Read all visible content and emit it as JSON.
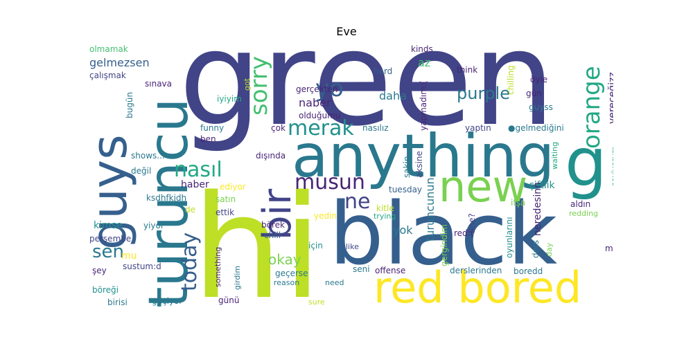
{
  "title": "Eve",
  "palette": {
    "deep_purple": "#482475",
    "indigo": "#414487",
    "slate_blue": "#355f8d",
    "steel_blue": "#2a788e",
    "teal": "#21918c",
    "sea_green": "#22a884",
    "green": "#44bf70",
    "lime": "#7ad151",
    "yellow_green": "#bddf26",
    "yellow": "#fde725"
  },
  "words": [
    {
      "id": "green",
      "text": "green",
      "color": "#414487"
    },
    {
      "id": "hi",
      "text": "hi",
      "color": "#bddf26"
    },
    {
      "id": "anything",
      "text": "anything",
      "color": "#2a788e"
    },
    {
      "id": "black",
      "text": "black",
      "color": "#355f8d"
    },
    {
      "id": "turuncu",
      "text": "turuncu",
      "color": "#2a788e"
    },
    {
      "id": "guys",
      "text": "guys",
      "color": "#355f8d"
    },
    {
      "id": "red_bored",
      "text": "red bored",
      "color": "#fde725"
    },
    {
      "id": "new",
      "text": "new",
      "color": "#7ad151"
    },
    {
      "id": "bir",
      "text": "bir",
      "color": "#414487"
    },
    {
      "id": "g",
      "text": "g",
      "color": "#21918c"
    },
    {
      "id": "orange",
      "text": "orange",
      "color": "#22a884"
    },
    {
      "id": "sorry",
      "text": "sorry",
      "color": "#44bf70"
    },
    {
      "id": "yo",
      "text": "yo",
      "color": "#355f8d"
    },
    {
      "id": "merak",
      "text": "merak",
      "color": "#21918c"
    },
    {
      "id": "nasil",
      "text": "nasıl",
      "color": "#22a884"
    },
    {
      "id": "musun",
      "text": "musun",
      "color": "#482475"
    },
    {
      "id": "ne",
      "text": "ne",
      "color": "#414487"
    },
    {
      "id": "today",
      "text": "today",
      "color": "#355f8d"
    },
    {
      "id": "sen",
      "text": "sen",
      "color": "#2a788e"
    },
    {
      "id": "purple",
      "text": "purple",
      "color": "#2a788e"
    },
    {
      "id": "okay",
      "text": "okay",
      "color": "#7ad151"
    },
    {
      "id": "daha",
      "text": "daha",
      "color": "#2a788e"
    },
    {
      "id": "naber",
      "text": "naber",
      "color": "#482475"
    },
    {
      "id": "az",
      "text": "az",
      "color": "#44bf70"
    },
    {
      "id": "gelmezsen",
      "text": "gelmezsen",
      "color": "#355f8d"
    },
    {
      "id": "calismak",
      "text": "çalışmak",
      "color": "#414487"
    },
    {
      "id": "olmamak",
      "text": "olmamak",
      "color": "#44bf70"
    },
    {
      "id": "kinds",
      "text": "kinds",
      "color": "#482475"
    },
    {
      "id": "chilling",
      "text": "chilling",
      "color": "#bddf26"
    },
    {
      "id": "verecegizz",
      "text": "vereceğizz",
      "color": "#482475"
    },
    {
      "id": "think",
      "text": "think",
      "color": "#482475"
    },
    {
      "id": "hard",
      "text": "hard",
      "color": "#355f8d"
    },
    {
      "id": "oyle",
      "text": "öyle",
      "color": "#482475"
    },
    {
      "id": "gun",
      "text": "gün",
      "color": "#482475"
    },
    {
      "id": "guyss",
      "text": "guyss",
      "color": "#2a788e"
    },
    {
      "id": "gercekten",
      "text": "gerçekten",
      "color": "#482475"
    },
    {
      "id": "yapmadim",
      "text": "yapmadım:(",
      "color": "#482475"
    },
    {
      "id": "sinava",
      "text": "sınava",
      "color": "#482475"
    },
    {
      "id": "got",
      "text": "got",
      "color": "#bddf26"
    },
    {
      "id": "bugun",
      "text": "bugün",
      "color": "#2a788e"
    },
    {
      "id": "iyiyim",
      "text": "iyiyim",
      "color": "#22a884"
    },
    {
      "id": "oldugumu",
      "text": "olduğumu",
      "color": "#482475"
    },
    {
      "id": "nasiliz",
      "text": "nasılız",
      "color": "#2a788e"
    },
    {
      "id": "cok",
      "text": "çok",
      "color": "#482475"
    },
    {
      "id": "funny",
      "text": "funny",
      "color": "#2a788e"
    },
    {
      "id": "ben",
      "text": "ben",
      "color": "#482475"
    },
    {
      "id": "yaptin",
      "text": "yaptın",
      "color": "#414487"
    },
    {
      "id": "gelmedigini",
      "text": "●gelmediğini",
      "color": "#2a788e"
    },
    {
      "id": "waiting",
      "text": "waiting",
      "color": "#22a884"
    },
    {
      "id": "seviyorum",
      "text": "seviyorum",
      "color": "#22a884"
    },
    {
      "id": "shows",
      "text": "shows...",
      "color": "#2a788e"
    },
    {
      "id": "disinda",
      "text": "dışında",
      "color": "#482475"
    },
    {
      "id": "degil",
      "text": "değil",
      "color": "#2a788e"
    },
    {
      "id": "sakin",
      "text": "sakin",
      "color": "#2a788e"
    },
    {
      "id": "aksine",
      "text": "aksine",
      "color": "#414487"
    },
    {
      "id": "haber",
      "text": "haber",
      "color": "#482475"
    },
    {
      "id": "ediyor",
      "text": "ediyor",
      "color": "#fde725"
    },
    {
      "id": "tuesday",
      "text": "tuesday",
      "color": "#355f8d"
    },
    {
      "id": "turuncunun",
      "text": "turuncunun",
      "color": "#2a788e"
    },
    {
      "id": "ciftlik",
      "text": "çiftlik",
      "color": "#21918c"
    },
    {
      "id": "ksdhfkjdh",
      "text": "ksdhfkjdh",
      "color": "#2a788e"
    },
    {
      "id": "satin",
      "text": "satın",
      "color": "#7ad151"
    },
    {
      "id": "fine",
      "text": "fine?",
      "color": "#414487"
    },
    {
      "id": "neredesinn",
      "text": "neredesinn",
      "color": "#482475"
    },
    {
      "id": "ifsa",
      "text": "ifşa",
      "color": "#7ad151"
    },
    {
      "id": "aldin",
      "text": "aldın",
      "color": "#482475"
    },
    {
      "id": "de",
      "text": "de",
      "color": "#bddf26"
    },
    {
      "id": "ettik",
      "text": "ettik",
      "color": "#414487"
    },
    {
      "id": "kitle",
      "text": "kitle",
      "color": "#bddf26"
    },
    {
      "id": "redding",
      "text": "redding",
      "color": "#7ad151"
    },
    {
      "id": "kimse",
      "text": "kimse",
      "color": "#21918c"
    },
    {
      "id": "yiyor",
      "text": "yiyor",
      "color": "#2a788e"
    },
    {
      "id": "yedin",
      "text": "yedin",
      "color": "#fde725"
    },
    {
      "id": "borek",
      "text": "börek",
      "color": "#482475"
    },
    {
      "id": "trying",
      "text": "trying",
      "color": "#22a884"
    },
    {
      "id": "yok",
      "text": "yok",
      "color": "#2a788e"
    },
    {
      "id": "gergindim",
      "text": "gergindim",
      "color": "#7ad151"
    },
    {
      "id": "oyunlarini",
      "text": "oyunlarını",
      "color": "#21918c"
    },
    {
      "id": "red_sad",
      "text": "red:(",
      "color": "#482475"
    },
    {
      "id": "persembe",
      "text": "perşembe",
      "color": "#414487"
    },
    {
      "id": "chill",
      "text": "chill",
      "color": "#355f8d"
    },
    {
      "id": "icin",
      "text": "için",
      "color": "#21918c"
    },
    {
      "id": "like",
      "text": "like",
      "color": "#414487"
    },
    {
      "id": "ders",
      "text": "ders",
      "color": "#2a788e"
    },
    {
      "id": "day",
      "text": "day",
      "color": "#7ad151"
    },
    {
      "id": "mi",
      "text": "mı",
      "color": "#482475"
    },
    {
      "id": "mu",
      "text": "mu",
      "color": "#fde725"
    },
    {
      "id": "sustum",
      "text": "sustum:d",
      "color": "#414487"
    },
    {
      "id": "sey",
      "text": "şey",
      "color": "#482475"
    },
    {
      "id": "something",
      "text": "something",
      "color": "#482475"
    },
    {
      "id": "girdim",
      "text": "girdim",
      "color": "#2a788e"
    },
    {
      "id": "seni",
      "text": "seni",
      "color": "#2a788e"
    },
    {
      "id": "offense",
      "text": "offense",
      "color": "#482475"
    },
    {
      "id": "derslerinden",
      "text": "derslerinden",
      "color": "#2a788e"
    },
    {
      "id": "boredd",
      "text": "boredd",
      "color": "#2a788e"
    },
    {
      "id": "geceise",
      "text": "geçerse",
      "color": "#2a788e"
    },
    {
      "id": "reason",
      "text": "reason",
      "color": "#2a788e"
    },
    {
      "id": "need",
      "text": "need",
      "color": "#2a788e"
    },
    {
      "id": "boregi",
      "text": "böreği",
      "color": "#21918c"
    },
    {
      "id": "birisi",
      "text": "birisi",
      "color": "#2a788e"
    },
    {
      "id": "geciyor",
      "text": "geçiyor",
      "color": "#2a788e"
    },
    {
      "id": "gunu",
      "text": "günü",
      "color": "#482475"
    },
    {
      "id": "sure",
      "text": "sure",
      "color": "#bddf26"
    }
  ]
}
